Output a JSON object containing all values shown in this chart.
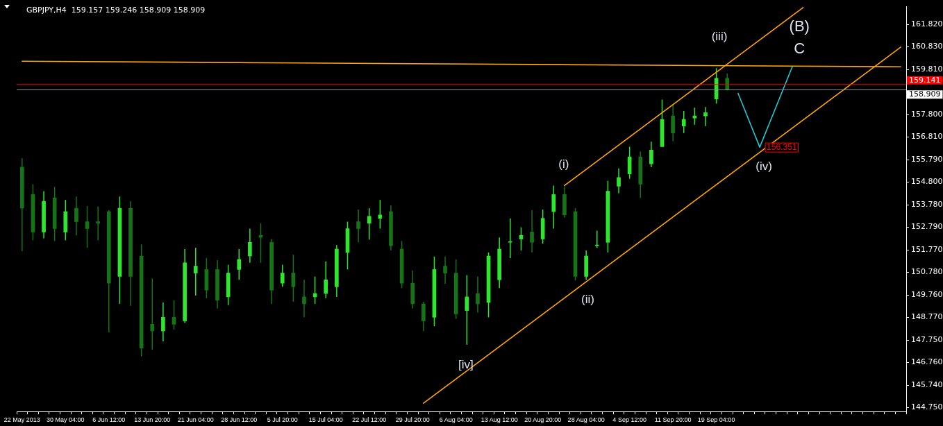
{
  "chart_data": {
    "type": "candlestick",
    "title": "GBPJPY,H4  159.157 159.246 158.909 158.909",
    "colors": [
      "#177317",
      "#177317",
      "#2ee62e",
      "#177317",
      "#2ee62e",
      "#177317",
      "#177317",
      "#177317",
      "#177317",
      "#2ee62e",
      "#177317",
      "#177317",
      "#177317",
      "#2ee62e",
      "#177317",
      "#2ee62e",
      "#2ee62e",
      "#177317",
      "#177317",
      "#2ee62e",
      "#2ee62e",
      "#2ee62e",
      "#177317",
      "#177317",
      "#2ee62e",
      "#177317",
      "#177317",
      "#2ee62e",
      "#2ee62e",
      "#2ee62e",
      "#2ee62e",
      "#177317",
      "#2ee62e",
      "#2ee62e",
      "#177317",
      "#177317",
      "#177317",
      "#177317",
      "#2ee62e",
      "#177317",
      "#177317",
      "#2ee62e",
      "#177317",
      "#2ee62e",
      "#2ee62e",
      "#2ee62e",
      "#2ee62e",
      "#177317",
      "#2ee62e",
      "#2ee62e",
      "#177317",
      "#177317",
      "#2ee62e",
      "#2ee62e",
      "#2ee62e",
      "#2ee62e",
      "#2ee62e",
      "#177317",
      "#2ee62e",
      "#2ee62e",
      "#177317",
      "#2ee62e",
      "#2ee62e",
      "#2ee62e",
      "#2ee62e",
      "#177317",
      null,
      null,
      null,
      null,
      null,
      null,
      null,
      null,
      null,
      null,
      null,
      null,
      null,
      null,
      null,
      null
    ],
    "grid": false,
    "marker": "none",
    "categories": [
      "22 May 2013",
      null,
      null,
      null,
      "30 May 04:00",
      null,
      null,
      null,
      "6 Jun 12:00",
      null,
      null,
      null,
      "13 Jun 20:00",
      null,
      null,
      null,
      "21 Jun 04:00",
      null,
      null,
      null,
      "28 Jun 12:00",
      null,
      null,
      null,
      "5 Jul 20:00",
      null,
      null,
      null,
      "15 Jul 04:00",
      null,
      null,
      null,
      "22 Jul 12:00",
      null,
      null,
      null,
      "29 Jul 20:00",
      null,
      null,
      null,
      "6 Aug 04:00",
      null,
      null,
      null,
      "13 Aug 12:00",
      null,
      null,
      null,
      "20 Aug 20:00",
      null,
      null,
      null,
      "28 Aug 04:00",
      null,
      null,
      null,
      "4 Sep 12:00",
      null,
      null,
      null,
      "11 Sep 20:00",
      null,
      null,
      null,
      "19 Sep 04:00",
      null,
      null,
      null,
      null,
      null,
      null,
      null,
      null,
      null,
      null,
      null,
      null,
      null,
      null,
      null,
      null,
      null
    ],
    "ylim": [
      144.57,
      162.61
    ],
    "yticks": [
      {
        "value": 161.82,
        "label": "161.820"
      },
      {
        "value": 160.83,
        "label": "160.830"
      },
      {
        "value": 159.81,
        "label": "159.810"
      },
      {
        "value": 157.8,
        "label": "157.800"
      },
      {
        "value": 156.81,
        "label": "156.810"
      },
      {
        "value": 155.79,
        "label": "155.790"
      },
      {
        "value": 154.8,
        "label": "154.800"
      },
      {
        "value": 153.78,
        "label": "153.780"
      },
      {
        "value": 152.79,
        "label": "152.790"
      },
      {
        "value": 151.77,
        "label": "151.770"
      },
      {
        "value": 150.78,
        "label": "150.780"
      },
      {
        "value": 149.76,
        "label": "149.760"
      },
      {
        "value": 148.77,
        "label": "148.770"
      },
      {
        "value": 147.75,
        "label": "147.750"
      },
      {
        "value": 146.76,
        "label": "146.760"
      },
      {
        "value": 145.74,
        "label": "145.740"
      },
      {
        "value": 144.75,
        "label": "144.750"
      }
    ],
    "ohlc": [
      [
        155.46,
        155.86,
        151.72,
        153.63
      ],
      [
        154.24,
        154.7,
        152.2,
        152.57
      ],
      [
        152.57,
        154.39,
        152.29,
        153.94
      ],
      [
        154.09,
        154.58,
        152.17,
        152.72
      ],
      [
        152.57,
        154.0,
        152.2,
        153.48
      ],
      [
        153.63,
        154.15,
        152.42,
        153.03
      ],
      [
        153.03,
        153.73,
        151.87,
        152.72
      ],
      [
        153.03,
        153.7,
        152.2,
        152.96
      ],
      [
        153.48,
        153.54,
        148.1,
        150.29
      ],
      [
        150.59,
        154.15,
        149.37,
        153.63
      ],
      [
        153.63,
        153.94,
        149.28,
        150.59
      ],
      [
        151.5,
        152.02,
        147.03,
        147.4
      ],
      [
        148.46,
        150.5,
        147.33,
        148.16
      ],
      [
        148.16,
        149.43,
        147.7,
        148.77
      ],
      [
        148.77,
        149.53,
        148.22,
        148.46
      ],
      [
        148.61,
        151.81,
        148.52,
        151.2
      ],
      [
        150.74,
        151.87,
        149.74,
        151.05
      ],
      [
        150.9,
        151.41,
        149.62,
        149.98
      ],
      [
        150.9,
        151.32,
        149.16,
        149.53
      ],
      [
        149.68,
        151.11,
        149.31,
        150.74
      ],
      [
        150.9,
        151.81,
        150.44,
        151.35
      ],
      [
        151.5,
        152.72,
        151.2,
        152.11
      ],
      [
        152.42,
        152.96,
        151.2,
        152.33
      ],
      [
        152.11,
        152.26,
        149.37,
        149.98
      ],
      [
        150.29,
        151.11,
        150.13,
        150.74
      ],
      [
        150.74,
        151.56,
        149.46,
        150.13
      ],
      [
        149.68,
        150.44,
        148.77,
        149.37
      ],
      [
        149.68,
        150.59,
        149.37,
        149.83
      ],
      [
        149.83,
        151.26,
        149.62,
        150.44
      ],
      [
        150.13,
        151.99,
        149.68,
        151.81
      ],
      [
        151.66,
        153.03,
        150.9,
        152.72
      ],
      [
        153.03,
        153.57,
        152.11,
        152.72
      ],
      [
        152.96,
        153.63,
        152.23,
        153.27
      ],
      [
        153.18,
        154.0,
        152.72,
        153.33
      ],
      [
        153.48,
        153.76,
        151.75,
        151.96
      ],
      [
        151.81,
        152.17,
        150.07,
        150.29
      ],
      [
        150.29,
        150.86,
        149.16,
        149.37
      ],
      [
        149.37,
        149.46,
        148.16,
        148.61
      ],
      [
        148.77,
        151.47,
        148.37,
        150.9
      ],
      [
        151.05,
        151.47,
        150.26,
        150.74
      ],
      [
        150.74,
        151.35,
        148.7,
        148.92
      ],
      [
        149.07,
        150.65,
        147.55,
        149.68
      ],
      [
        149.83,
        150.59,
        148.98,
        149.37
      ],
      [
        149.43,
        151.66,
        148.77,
        151.5
      ],
      [
        150.44,
        152.33,
        150.07,
        151.81
      ],
      [
        152.11,
        153.18,
        151.41,
        152.11
      ],
      [
        152.26,
        152.78,
        151.75,
        152.42
      ],
      [
        152.57,
        153.54,
        151.66,
        152.11
      ],
      [
        152.26,
        153.57,
        152.05,
        153.18
      ],
      [
        153.48,
        154.64,
        152.72,
        154.24
      ],
      [
        154.24,
        154.61,
        153.21,
        153.33
      ],
      [
        153.48,
        153.63,
        150.41,
        150.59
      ],
      [
        150.59,
        151.75,
        150.44,
        151.5
      ],
      [
        151.96,
        152.63,
        151.87,
        151.96
      ],
      [
        152.11,
        154.85,
        151.66,
        154.39
      ],
      [
        154.61,
        155.4,
        154.3,
        155.0
      ],
      [
        155.16,
        156.37,
        154.94,
        155.92
      ],
      [
        155.92,
        156.16,
        154.09,
        154.7
      ],
      [
        155.61,
        156.59,
        155.46,
        156.22
      ],
      [
        156.37,
        158.47,
        156.37,
        157.59
      ],
      [
        157.74,
        158.26,
        156.62,
        156.98
      ],
      [
        157.29,
        157.96,
        156.98,
        157.59
      ],
      [
        157.65,
        158.11,
        157.35,
        157.74
      ],
      [
        157.74,
        158.14,
        157.29,
        157.89
      ],
      [
        158.5,
        159.87,
        158.29,
        159.42
      ],
      [
        159.42,
        159.63,
        158.87,
        158.9
      ],
      null,
      null,
      null,
      null,
      null,
      null,
      null,
      null,
      null,
      null,
      null,
      null,
      null,
      null,
      null,
      null
    ],
    "series": [
      {
        "type": "line",
        "color": "#ffa500",
        "line_style": "solid",
        "values": [
          160.18,
          null,
          null,
          null,
          null,
          null,
          null,
          null,
          null,
          null,
          null,
          null,
          null,
          null,
          null,
          null,
          null,
          null,
          null,
          null,
          null,
          null,
          null,
          null,
          null,
          null,
          null,
          null,
          null,
          null,
          null,
          null,
          null,
          null,
          null,
          null,
          null,
          null,
          null,
          null,
          null,
          null,
          null,
          null,
          null,
          null,
          null,
          null,
          null,
          null,
          null,
          null,
          null,
          null,
          null,
          null,
          null,
          null,
          null,
          null,
          null,
          null,
          null,
          null,
          null,
          null,
          null,
          null,
          null,
          null,
          null,
          null,
          null,
          null,
          null,
          null,
          null,
          null,
          null,
          null,
          null,
          159.93
        ]
      },
      {
        "type": "line",
        "color": "#ffa500",
        "line_style": "solid",
        "values": [
          null,
          null,
          null,
          null,
          null,
          null,
          null,
          null,
          null,
          null,
          null,
          null,
          null,
          null,
          null,
          null,
          null,
          null,
          null,
          null,
          null,
          null,
          null,
          null,
          null,
          null,
          null,
          null,
          null,
          null,
          null,
          null,
          null,
          null,
          null,
          null,
          null,
          null,
          null,
          null,
          null,
          null,
          null,
          null,
          null,
          null,
          null,
          null,
          null,
          null,
          154.64,
          null,
          null,
          null,
          null,
          null,
          null,
          null,
          null,
          null,
          null,
          null,
          null,
          null,
          null,
          null,
          null,
          null,
          null,
          null,
          null,
          null,
          162.57,
          null,
          null,
          null,
          null,
          null,
          null,
          null,
          null,
          null
        ]
      },
      {
        "type": "line",
        "color": "#ffa500",
        "line_style": "solid",
        "values": [
          null,
          null,
          null,
          null,
          null,
          null,
          null,
          null,
          null,
          null,
          null,
          null,
          null,
          null,
          null,
          null,
          null,
          null,
          null,
          null,
          null,
          null,
          null,
          null,
          null,
          null,
          null,
          null,
          null,
          null,
          null,
          null,
          null,
          null,
          null,
          null,
          null,
          144.94,
          null,
          null,
          null,
          null,
          null,
          null,
          null,
          null,
          null,
          null,
          null,
          null,
          null,
          null,
          null,
          null,
          null,
          null,
          null,
          null,
          null,
          null,
          null,
          null,
          null,
          null,
          null,
          null,
          null,
          null,
          null,
          null,
          null,
          null,
          null,
          null,
          null,
          null,
          null,
          null,
          null,
          null,
          null,
          160.81
        ]
      },
      {
        "type": "line",
        "color": "#20c8d0",
        "line_style": "solid",
        "values": [
          null,
          null,
          null,
          null,
          null,
          null,
          null,
          null,
          null,
          null,
          null,
          null,
          null,
          null,
          null,
          null,
          null,
          null,
          null,
          null,
          null,
          null,
          null,
          null,
          null,
          null,
          null,
          null,
          null,
          null,
          null,
          null,
          null,
          null,
          null,
          null,
          null,
          null,
          null,
          null,
          null,
          null,
          null,
          null,
          null,
          null,
          null,
          null,
          null,
          null,
          null,
          null,
          null,
          null,
          null,
          null,
          null,
          null,
          null,
          null,
          null,
          null,
          null,
          null,
          null,
          null,
          158.75,
          null,
          156.35,
          null,
          null,
          159.93,
          null,
          null,
          null,
          null,
          null,
          null,
          null,
          null,
          null,
          null
        ]
      }
    ],
    "ref_lines": [
      {
        "axis": "y",
        "value": 159.141,
        "label": "159.141",
        "color": "#ff0000"
      },
      {
        "axis": "y",
        "value": 158.909,
        "label": "158.909",
        "color": "#8894a0"
      }
    ],
    "annotations": [
      "(i)",
      "(ii)",
      "(iii)",
      "(iv)",
      "[iv]",
      "(B)",
      "C",
      "156.351"
    ]
  }
}
